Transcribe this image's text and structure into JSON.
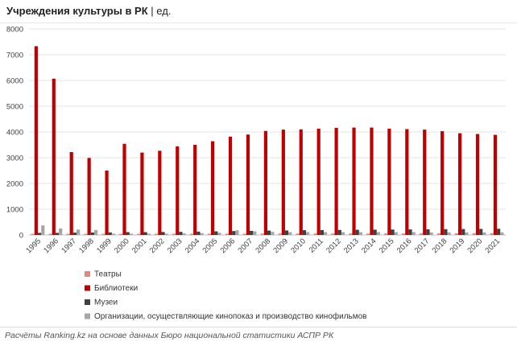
{
  "title": {
    "main": "Учреждения культуры в РК",
    "unit": "| ед."
  },
  "footer": {
    "source": "Расчёты Ranking.kz на основе данных Бюро национальной статистики АСПР РК"
  },
  "colors": {
    "theatres": "#e8877e",
    "libraries": "#c00000",
    "museums": "#404040",
    "cinema": "#a6a6a6",
    "grid": "#e5e5e5",
    "axis_text": "#404040"
  },
  "chart_data": {
    "type": "bar",
    "title": "Учреждения культуры в РК",
    "xlabel": "",
    "ylabel": "",
    "ylim": [
      0,
      8000
    ],
    "yticks": [
      "0",
      "1000",
      "2000",
      "3000",
      "4000",
      "5000",
      "6000",
      "7000",
      "8000"
    ],
    "grid": true,
    "legend_position": "bottom-left",
    "categories": [
      "1995",
      "1996",
      "1997",
      "1998",
      "1999",
      "2000",
      "2001",
      "2002",
      "2003",
      "2004",
      "2005",
      "2006",
      "2007",
      "2008",
      "2009",
      "2010",
      "2011",
      "2012",
      "2013",
      "2014",
      "2015",
      "2016",
      "2017",
      "2018",
      "2019",
      "2020",
      "2021"
    ],
    "series": [
      {
        "name": "Театры",
        "color_key": "theatres",
        "values": [
          45,
          45,
          45,
          45,
          45,
          46,
          46,
          47,
          48,
          49,
          50,
          51,
          52,
          53,
          54,
          55,
          55,
          56,
          56,
          57,
          58,
          60,
          62,
          64,
          64,
          66,
          67
        ]
      },
      {
        "name": "Библиотеки",
        "color_key": "libraries",
        "values": [
          7330,
          6070,
          3220,
          2990,
          2500,
          3540,
          3200,
          3270,
          3440,
          3500,
          3640,
          3820,
          3900,
          4040,
          4090,
          4100,
          4130,
          4160,
          4170,
          4170,
          4130,
          4110,
          4090,
          4030,
          3950,
          3920,
          3890
        ]
      },
      {
        "name": "Музеи",
        "color_key": "museums",
        "values": [
          80,
          80,
          90,
          95,
          100,
          110,
          110,
          115,
          120,
          130,
          140,
          150,
          160,
          170,
          175,
          185,
          190,
          195,
          200,
          205,
          210,
          215,
          220,
          225,
          230,
          235,
          240
        ]
      },
      {
        "name": "Организации, осуществляющие кинопоказ и производство кинофильмов",
        "color_key": "cinema",
        "values": [
          370,
          250,
          210,
          190,
          50,
          50,
          50,
          50,
          60,
          70,
          85,
          180,
          140,
          120,
          110,
          110,
          110,
          110,
          110,
          110,
          110,
          110,
          100,
          100,
          100,
          100,
          100
        ]
      }
    ]
  }
}
